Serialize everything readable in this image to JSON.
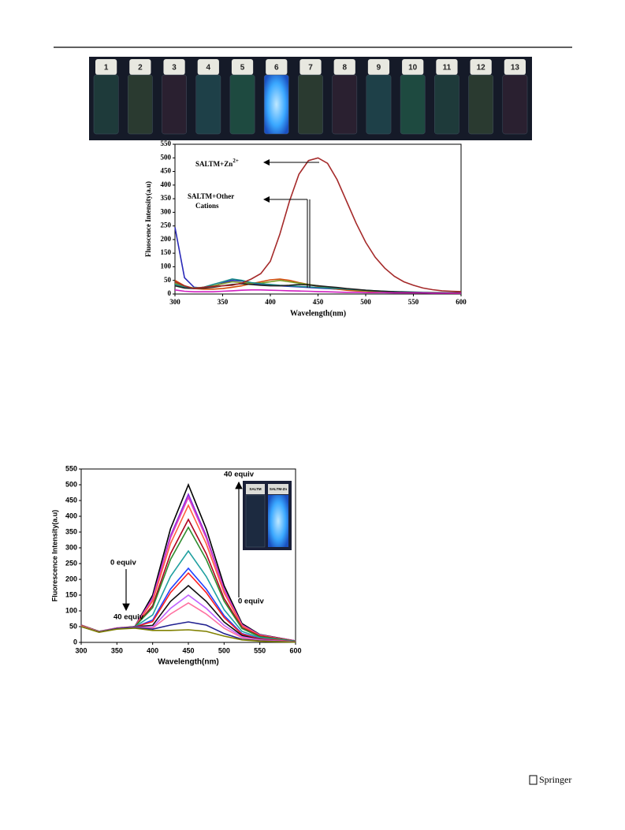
{
  "photo": {
    "labels": [
      "1",
      "2",
      "3",
      "4",
      "5",
      "6",
      "7",
      "8",
      "9",
      "10",
      "11",
      "12",
      "13"
    ]
  },
  "chart_data": [
    {
      "type": "line",
      "xlabel": "Wavelength(nm)",
      "ylabel": "Fluoscence Intensity(a.u)",
      "x": [
        300,
        310,
        320,
        330,
        340,
        350,
        360,
        370,
        380,
        390,
        400,
        410,
        420,
        430,
        440,
        450,
        460,
        470,
        480,
        490,
        500,
        510,
        520,
        530,
        540,
        550,
        560,
        570,
        580,
        590,
        600
      ],
      "series": [
        {
          "color": "#2a2ab8",
          "values": [
            245,
            60,
            25,
            22,
            28,
            40,
            50,
            48,
            40,
            35,
            32,
            30,
            28,
            26,
            24,
            22,
            20,
            18,
            16,
            14,
            12,
            10,
            9,
            8,
            7,
            6,
            5,
            5,
            4,
            4,
            4
          ]
        },
        {
          "color": "#d14a0a",
          "values": [
            50,
            30,
            20,
            18,
            18,
            20,
            25,
            30,
            38,
            45,
            52,
            55,
            50,
            42,
            35,
            28,
            22,
            18,
            14,
            12,
            10,
            8,
            7,
            6,
            5,
            5,
            4,
            4,
            4,
            3,
            3
          ]
        },
        {
          "color": "#7a9a20",
          "values": [
            40,
            28,
            22,
            25,
            30,
            38,
            45,
            42,
            40,
            40,
            45,
            50,
            45,
            40,
            35,
            30,
            25,
            22,
            18,
            15,
            12,
            10,
            9,
            8,
            7,
            6,
            5,
            5,
            4,
            4,
            4
          ]
        },
        {
          "color": "#1a8a8a",
          "values": [
            35,
            25,
            20,
            25,
            35,
            45,
            55,
            50,
            42,
            38,
            35,
            32,
            30,
            28,
            26,
            24,
            22,
            20,
            18,
            16,
            14,
            12,
            10,
            9,
            8,
            7,
            6,
            5,
            5,
            4,
            4
          ]
        },
        {
          "color": "#222222",
          "values": [
            30,
            22,
            20,
            22,
            25,
            30,
            35,
            38,
            35,
            32,
            30,
            30,
            32,
            35,
            33,
            30,
            27,
            24,
            20,
            17,
            14,
            12,
            10,
            8,
            7,
            6,
            5,
            5,
            4,
            4,
            4
          ]
        },
        {
          "color": "#d020c0",
          "values": [
            15,
            10,
            8,
            8,
            8,
            10,
            12,
            14,
            15,
            15,
            14,
            13,
            12,
            11,
            10,
            9,
            8,
            7,
            6,
            6,
            5,
            5,
            5,
            4,
            4,
            4,
            4,
            3,
            3,
            3,
            3
          ]
        },
        {
          "color": "#a52a2a",
          "values": [
            45,
            30,
            20,
            25,
            28,
            30,
            32,
            40,
            55,
            75,
            120,
            220,
            340,
            440,
            490,
            500,
            480,
            420,
            340,
            260,
            190,
            135,
            95,
            65,
            45,
            32,
            22,
            16,
            12,
            10,
            9
          ]
        }
      ],
      "xlim": [
        300,
        600
      ],
      "ylim": [
        0,
        550
      ],
      "xticks": [
        300,
        350,
        400,
        450,
        500,
        550,
        600
      ],
      "yticks": [
        0,
        50,
        100,
        150,
        200,
        250,
        300,
        350,
        400,
        450,
        500,
        550
      ],
      "annotations": [
        {
          "text": "SALTM+Zn",
          "sup": "2+"
        },
        {
          "text": "SALTM+Other"
        },
        {
          "text": "Cations"
        }
      ]
    },
    {
      "type": "line",
      "xlabel": "Wavelength(nm)",
      "ylabel": "Fluorescence Intensity(a.u)",
      "x": [
        300,
        325,
        350,
        375,
        400,
        425,
        450,
        475,
        500,
        525,
        550,
        575,
        600
      ],
      "series": [
        {
          "color": "#000000",
          "values": [
            55,
            35,
            45,
            50,
            150,
            360,
            500,
            360,
            180,
            60,
            25,
            15,
            5
          ]
        },
        {
          "color": "#8b2be2",
          "values": [
            54,
            34,
            45,
            50,
            141,
            338,
            470,
            338,
            169,
            56,
            24,
            14,
            5
          ]
        },
        {
          "color": "#e040c0",
          "values": [
            55,
            35,
            46,
            50,
            138,
            331,
            460,
            331,
            166,
            55,
            23,
            14,
            5
          ]
        },
        {
          "color": "#ff6040",
          "values": [
            53,
            34,
            44,
            49,
            131,
            313,
            435,
            313,
            157,
            52,
            22,
            13,
            4
          ]
        },
        {
          "color": "#b00020",
          "values": [
            52,
            33,
            44,
            49,
            117,
            281,
            390,
            281,
            140,
            47,
            20,
            12,
            4
          ]
        },
        {
          "color": "#2e8b2e",
          "values": [
            54,
            35,
            45,
            50,
            110,
            263,
            365,
            263,
            131,
            44,
            18,
            11,
            4
          ]
        },
        {
          "color": "#20a0a0",
          "values": [
            52,
            34,
            44,
            49,
            87,
            209,
            290,
            209,
            104,
            35,
            15,
            9,
            3
          ]
        },
        {
          "color": "#2040ff",
          "values": [
            51,
            33,
            43,
            48,
            71,
            169,
            235,
            169,
            85,
            28,
            12,
            7,
            2
          ]
        },
        {
          "color": "#ff2020",
          "values": [
            53,
            34,
            44,
            49,
            66,
            158,
            220,
            158,
            79,
            26,
            11,
            7,
            2
          ]
        },
        {
          "color": "#111111",
          "values": [
            52,
            33,
            45,
            50,
            54,
            130,
            180,
            130,
            65,
            22,
            9,
            5,
            2
          ]
        },
        {
          "color": "#c060ff",
          "values": [
            51,
            33,
            44,
            49,
            48,
            108,
            150,
            108,
            54,
            18,
            8,
            5,
            2
          ]
        },
        {
          "color": "#ff70a0",
          "values": [
            52,
            34,
            45,
            48,
            45,
            90,
            125,
            90,
            45,
            15,
            6,
            4,
            1
          ]
        },
        {
          "color": "#202090",
          "values": [
            50,
            33,
            44,
            47,
            42,
            55,
            65,
            55,
            28,
            10,
            5,
            3,
            1
          ]
        },
        {
          "color": "#808000",
          "values": [
            50,
            32,
            42,
            45,
            38,
            38,
            40,
            35,
            20,
            8,
            4,
            2,
            1
          ]
        }
      ],
      "xlim": [
        300,
        600
      ],
      "ylim": [
        0,
        550
      ],
      "xticks": [
        300,
        350,
        400,
        450,
        500,
        550,
        600
      ],
      "yticks": [
        0,
        50,
        100,
        150,
        200,
        250,
        300,
        350,
        400,
        450,
        500,
        550
      ],
      "annotations": [
        "0 equiv",
        "40 equiv",
        "40 equiv",
        "0 equiv"
      ],
      "inset_labels": [
        "SALTM",
        "SALTM-Zn"
      ]
    }
  ],
  "footer": {
    "publisher": "Springer"
  }
}
